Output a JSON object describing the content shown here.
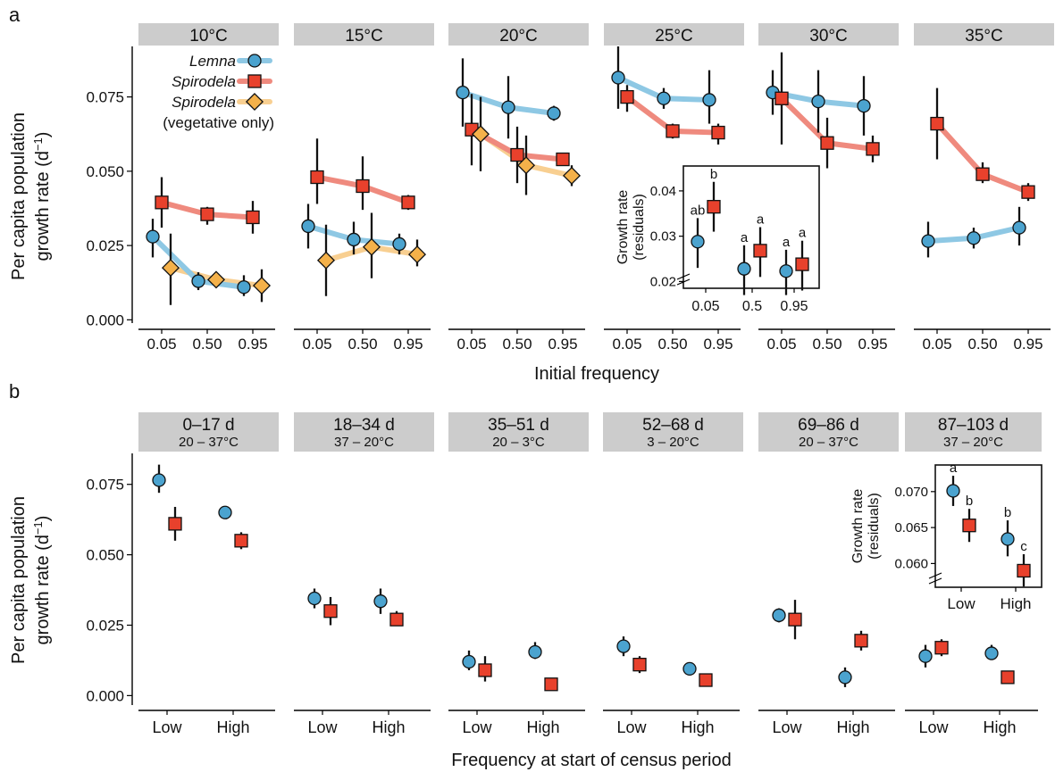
{
  "figure": {
    "panel_a_label": "a",
    "panel_b_label": "b",
    "y_label_line1": "Per capita population",
    "y_label_line2_prefix": "growth rate (d",
    "y_label_exp": "−1",
    "y_label_line2_suffix": ")",
    "a_xlabel": "Initial frequency",
    "b_xlabel": "Frequency at start of census period",
    "inset_ylabel_line1": "Growth rate",
    "inset_ylabel_line2": "(residuals)"
  },
  "colors": {
    "lemna": "#4ba3cf",
    "spirodela": "#e8412c",
    "spirodela_veg": "#f4b14a",
    "lemna_line": "#8ec8e4",
    "spirodela_line": "#ef8a7e",
    "spirodela_veg_line": "#f8cf91"
  },
  "legend": {
    "items": [
      {
        "key": "lemna",
        "label": "Lemna",
        "marker": "circle",
        "italic": true
      },
      {
        "key": "spirodela",
        "label": "Spirodela",
        "marker": "square",
        "italic": true
      },
      {
        "key": "spirodela_veg",
        "label": "Spirodela",
        "marker": "diamond",
        "italic": true
      }
    ],
    "note": "(vegetative only)"
  },
  "chart_data": [
    {
      "id": "a",
      "type": "scatter",
      "xlabel": "Initial frequency",
      "ylabel": "Per capita population growth rate (d−1)",
      "x_ticks": [
        "0.05",
        "0.50",
        "0.95"
      ],
      "y_ticks": [
        "0.000",
        "0.025",
        "0.050",
        "0.075"
      ],
      "ylim": [
        -0.002,
        0.092
      ],
      "facets": [
        {
          "title": "10°C",
          "series": {
            "lemna": {
              "x": [
                0.05,
                0.5,
                0.95
              ],
              "y": [
                0.028,
                0.013,
                0.011
              ],
              "lo": [
                0.021,
                0.01,
                0.008
              ],
              "hi": [
                0.034,
                0.016,
                0.015
              ]
            },
            "spirodela": {
              "x": [
                0.05,
                0.5,
                0.95
              ],
              "y": [
                0.0395,
                0.0355,
                0.0345
              ],
              "lo": [
                0.031,
                0.032,
                0.029
              ],
              "hi": [
                0.048,
                0.038,
                0.04
              ]
            },
            "spirodela_veg": {
              "x": [
                0.05,
                0.5,
                0.95
              ],
              "y": [
                0.0175,
                0.0135,
                0.0115
              ],
              "lo": [
                0.005,
                0.011,
                0.006
              ],
              "hi": [
                0.029,
                0.016,
                0.017
              ]
            }
          }
        },
        {
          "title": "15°C",
          "series": {
            "lemna": {
              "x": [
                0.05,
                0.5,
                0.95
              ],
              "y": [
                0.0315,
                0.027,
                0.0255
              ],
              "lo": [
                0.024,
                0.022,
                0.022
              ],
              "hi": [
                0.039,
                0.033,
                0.029
              ]
            },
            "spirodela": {
              "x": [
                0.05,
                0.5,
                0.95
              ],
              "y": [
                0.048,
                0.045,
                0.0395
              ],
              "lo": [
                0.039,
                0.037,
                0.037
              ],
              "hi": [
                0.061,
                0.055,
                0.042
              ]
            },
            "spirodela_veg": {
              "x": [
                0.05,
                0.5,
                0.95
              ],
              "y": [
                0.02,
                0.0245,
                0.022
              ],
              "lo": [
                0.008,
                0.014,
                0.018
              ],
              "hi": [
                0.032,
                0.036,
                0.027
              ]
            }
          }
        },
        {
          "title": "20°C",
          "series": {
            "lemna": {
              "x": [
                0.05,
                0.5,
                0.95
              ],
              "y": [
                0.0765,
                0.0715,
                0.0695
              ],
              "lo": [
                0.065,
                0.061,
                0.067
              ],
              "hi": [
                0.088,
                0.082,
                0.072
              ]
            },
            "spirodela": {
              "x": [
                0.05,
                0.5,
                0.95
              ],
              "y": [
                0.064,
                0.0555,
                0.054
              ],
              "lo": [
                0.052,
                0.046,
                0.052
              ],
              "hi": [
                0.076,
                0.065,
                0.056
              ]
            },
            "spirodela_veg": {
              "x": [
                0.05,
                0.5,
                0.95
              ],
              "y": [
                0.0625,
                0.052,
                0.0485
              ],
              "lo": [
                0.05,
                0.042,
                0.045
              ],
              "hi": [
                0.075,
                0.062,
                0.052
              ]
            }
          }
        },
        {
          "title": "25°C",
          "series": {
            "lemna": {
              "x": [
                0.05,
                0.5,
                0.95
              ],
              "y": [
                0.0815,
                0.0745,
                0.074
              ],
              "lo": [
                0.071,
                0.071,
                0.066
              ],
              "hi": [
                0.092,
                0.078,
                0.084
              ]
            },
            "spirodela": {
              "x": [
                0.05,
                0.5,
                0.95
              ],
              "y": [
                0.075,
                0.0635,
                0.063
              ],
              "lo": [
                0.07,
                0.061,
                0.059
              ],
              "hi": [
                0.079,
                0.066,
                0.066
              ]
            }
          }
        },
        {
          "title": "30°C",
          "series": {
            "lemna": {
              "x": [
                0.05,
                0.5,
                0.95
              ],
              "y": [
                0.0765,
                0.0735,
                0.072
              ],
              "lo": [
                0.069,
                0.063,
                0.062
              ],
              "hi": [
                0.084,
                0.084,
                0.082
              ]
            },
            "spirodela": {
              "x": [
                0.05,
                0.5,
                0.95
              ],
              "y": [
                0.0745,
                0.0595,
                0.0575
              ],
              "lo": [
                0.059,
                0.051,
                0.053
              ],
              "hi": [
                0.09,
                0.068,
                0.062
              ]
            }
          }
        },
        {
          "title": "35°C",
          "series": {
            "lemna": {
              "x": [
                0.05,
                0.5,
                0.95
              ],
              "y": [
                0.0265,
                0.0275,
                0.031
              ],
              "lo": [
                0.021,
                0.024,
                0.025
              ],
              "hi": [
                0.033,
                0.031,
                0.038
              ]
            },
            "spirodela": {
              "x": [
                0.05,
                0.5,
                0.95
              ],
              "y": [
                0.066,
                0.049,
                0.043
              ],
              "lo": [
                0.054,
                0.046,
                0.04
              ],
              "hi": [
                0.078,
                0.053,
                0.046
              ]
            }
          }
        }
      ],
      "inset": {
        "x_ticks": [
          "0.05",
          "0.5",
          "0.95"
        ],
        "y_ticks": [
          "0.02",
          "0.03",
          "0.04"
        ],
        "ylim": [
          0.0185,
          0.0455
        ],
        "series": {
          "lemna": {
            "x": [
              0.05,
              0.5,
              0.95
            ],
            "y": [
              0.0288,
              0.0228,
              0.0223
            ],
            "lo": [
              0.023,
              0.017,
              0.017
            ],
            "hi": [
              0.034,
              0.028,
              0.027
            ],
            "letters": [
              "ab",
              "a",
              "a"
            ]
          },
          "spirodela": {
            "x": [
              0.05,
              0.5,
              0.95
            ],
            "y": [
              0.0365,
              0.0268,
              0.0238
            ],
            "lo": [
              0.031,
              0.021,
              0.018
            ],
            "hi": [
              0.042,
              0.032,
              0.029
            ],
            "letters": [
              "b",
              "a",
              "a"
            ]
          }
        }
      }
    },
    {
      "id": "b",
      "type": "scatter",
      "xlabel": "Frequency at start of census period",
      "ylabel": "Per capita population growth rate (d−1)",
      "x_categories": [
        "Low",
        "High"
      ],
      "y_ticks": [
        "0.000",
        "0.025",
        "0.050",
        "0.075"
      ],
      "ylim": [
        -0.004,
        0.086
      ],
      "facets": [
        {
          "title": "0–17 d",
          "subtitle": "20 – 37°C",
          "series": {
            "lemna": {
              "y": [
                0.0765,
                0.065
              ],
              "lo": [
                0.072,
                0.064
              ],
              "hi": [
                0.082,
                0.066
              ]
            },
            "spirodela": {
              "y": [
                0.061,
                0.055
              ],
              "lo": [
                0.055,
                0.052
              ],
              "hi": [
                0.067,
                0.058
              ]
            }
          }
        },
        {
          "title": "18–34 d",
          "subtitle": "37 – 20°C",
          "series": {
            "lemna": {
              "y": [
                0.0345,
                0.0335
              ],
              "lo": [
                0.031,
                0.029
              ],
              "hi": [
                0.038,
                0.038
              ]
            },
            "spirodela": {
              "y": [
                0.03,
                0.027
              ],
              "lo": [
                0.025,
                0.025
              ],
              "hi": [
                0.035,
                0.03
              ]
            }
          }
        },
        {
          "title": "35–51 d",
          "subtitle": "20 – 3°C",
          "series": {
            "lemna": {
              "y": [
                0.012,
                0.0155
              ],
              "lo": [
                0.009,
                0.013
              ],
              "hi": [
                0.016,
                0.019
              ]
            },
            "spirodela": {
              "y": [
                0.009,
                0.004
              ],
              "lo": [
                0.005,
                0.003
              ],
              "hi": [
                0.014,
                0.005
              ]
            }
          }
        },
        {
          "title": "52–68 d",
          "subtitle": "3 – 20°C",
          "series": {
            "lemna": {
              "y": [
                0.0175,
                0.0095
              ],
              "lo": [
                0.014,
                0.009
              ],
              "hi": [
                0.021,
                0.01
              ]
            },
            "spirodela": {
              "y": [
                0.011,
                0.0055
              ],
              "lo": [
                0.008,
                0.004
              ],
              "hi": [
                0.014,
                0.007
              ]
            }
          }
        },
        {
          "title": "69–86 d",
          "subtitle": "20 – 37°C",
          "series": {
            "lemna": {
              "y": [
                0.0285,
                0.0065
              ],
              "lo": [
                0.026,
                0.003
              ],
              "hi": [
                0.031,
                0.01
              ]
            },
            "spirodela": {
              "y": [
                0.027,
                0.0195
              ],
              "lo": [
                0.02,
                0.016
              ],
              "hi": [
                0.034,
                0.023
              ]
            }
          }
        },
        {
          "title": "87–103 d",
          "subtitle": "37 – 20°C",
          "series": {
            "lemna": {
              "y": [
                0.014,
                0.015
              ],
              "lo": [
                0.01,
                0.013
              ],
              "hi": [
                0.018,
                0.018
              ]
            },
            "spirodela": {
              "y": [
                0.017,
                0.0065
              ],
              "lo": [
                0.014,
                0.005
              ],
              "hi": [
                0.02,
                0.008
              ]
            }
          }
        }
      ],
      "inset": {
        "x_categories": [
          "Low",
          "High"
        ],
        "y_ticks": [
          "0.060",
          "0.065",
          "0.070"
        ],
        "ylim": [
          0.0567,
          0.0737
        ],
        "series": {
          "lemna": {
            "y": [
              0.0701,
              0.0634
            ],
            "lo": [
              0.068,
              0.061
            ],
            "hi": [
              0.0722,
              0.066
            ],
            "letters": [
              "a",
              "b"
            ]
          },
          "spirodela": {
            "y": [
              0.0653,
              0.059
            ],
            "lo": [
              0.063,
              0.0568
            ],
            "hi": [
              0.0676,
              0.0613
            ],
            "letters": [
              "b",
              "c"
            ]
          }
        }
      }
    }
  ]
}
